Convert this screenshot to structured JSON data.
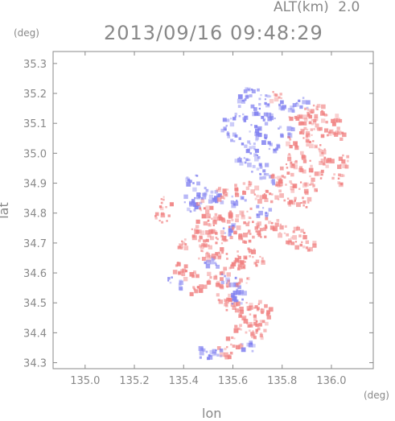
{
  "header": {
    "altitude_label": "ALT(km)",
    "altitude_value": "2.0",
    "timestamp": "2013/09/16 09:48:29"
  },
  "chart_data": {
    "type": "heatmap",
    "title": "2013/09/16 09:48:29",
    "subtitle": "ALT(km) 2.0",
    "xlabel": "lon",
    "ylabel": "lat",
    "xunit": "(deg)",
    "yunit": "(deg)",
    "xlim": [
      134.87,
      136.17
    ],
    "ylim": [
      34.28,
      35.34
    ],
    "xticks": [
      135.0,
      135.2,
      135.4,
      135.6,
      135.8,
      136.0
    ],
    "yticks": [
      34.3,
      34.4,
      34.5,
      34.6,
      34.7,
      34.8,
      34.9,
      35.0,
      35.1,
      35.2,
      35.3
    ],
    "xtick_labels": [
      "135.0",
      "135.2",
      "135.4",
      "135.6",
      "135.8",
      "136.0"
    ],
    "ytick_labels": [
      "34.3",
      "34.4",
      "34.5",
      "34.6",
      "34.7",
      "34.8",
      "34.9",
      "35.0",
      "35.1",
      "35.2",
      "35.3"
    ],
    "grid": false,
    "colors": {
      "positive": "#f08080",
      "negative": "#8080f0",
      "frame": "#888888"
    },
    "cells": [
      [
        135.64,
        35.18,
        -1
      ],
      [
        135.67,
        35.21,
        -1
      ],
      [
        135.7,
        35.15,
        -1
      ],
      [
        135.73,
        35.18,
        -1
      ],
      [
        135.69,
        35.09,
        -1
      ],
      [
        135.74,
        35.12,
        -1
      ],
      [
        135.77,
        35.19,
        1
      ],
      [
        135.62,
        35.13,
        -1
      ],
      [
        135.66,
        35.03,
        -1
      ],
      [
        135.72,
        35.05,
        -1
      ],
      [
        135.6,
        35.06,
        -1
      ],
      [
        135.63,
        34.98,
        -1
      ],
      [
        135.58,
        35.1,
        -1
      ],
      [
        135.87,
        35.17,
        -1
      ],
      [
        135.91,
        35.14,
        1
      ],
      [
        135.95,
        35.15,
        1
      ],
      [
        135.89,
        35.12,
        1
      ],
      [
        135.93,
        35.1,
        1
      ],
      [
        135.97,
        35.08,
        1
      ],
      [
        135.87,
        35.07,
        1
      ],
      [
        135.91,
        35.05,
        1
      ],
      [
        135.95,
        35.02,
        1
      ],
      [
        135.83,
        35.04,
        1
      ],
      [
        135.85,
        34.99,
        1
      ],
      [
        135.89,
        34.96,
        1
      ],
      [
        135.93,
        34.93,
        1
      ],
      [
        135.97,
        34.97,
        1
      ],
      [
        135.81,
        35.08,
        -1
      ],
      [
        135.85,
        35.11,
        1
      ],
      [
        136.0,
        35.12,
        1
      ],
      [
        135.8,
        34.91,
        1
      ],
      [
        135.86,
        34.89,
        1
      ],
      [
        135.91,
        34.89,
        1
      ],
      [
        135.76,
        34.86,
        1
      ],
      [
        135.83,
        34.84,
        1
      ],
      [
        135.73,
        34.92,
        -1
      ],
      [
        135.66,
        34.89,
        1
      ],
      [
        135.7,
        34.95,
        -1
      ],
      [
        135.7,
        34.85,
        1
      ],
      [
        135.42,
        34.85,
        -1
      ],
      [
        135.44,
        34.82,
        -1
      ],
      [
        135.46,
        34.87,
        -1
      ],
      [
        135.43,
        34.92,
        -1
      ],
      [
        135.48,
        34.83,
        1
      ],
      [
        135.5,
        34.86,
        -1
      ],
      [
        135.53,
        34.85,
        -1
      ],
      [
        135.56,
        34.87,
        1
      ],
      [
        135.59,
        34.88,
        1
      ],
      [
        135.62,
        34.84,
        -1
      ],
      [
        135.64,
        34.8,
        1
      ],
      [
        135.58,
        34.79,
        1
      ],
      [
        135.53,
        34.79,
        1
      ],
      [
        135.5,
        34.78,
        1
      ],
      [
        135.47,
        34.76,
        1
      ],
      [
        135.45,
        34.73,
        1
      ],
      [
        135.49,
        34.71,
        1
      ],
      [
        135.52,
        34.74,
        1
      ],
      [
        135.55,
        34.72,
        1
      ],
      [
        135.58,
        34.75,
        -1
      ],
      [
        135.61,
        34.74,
        1
      ],
      [
        135.64,
        34.72,
        1
      ],
      [
        135.67,
        34.76,
        1
      ],
      [
        135.7,
        34.74,
        1
      ],
      [
        135.72,
        34.81,
        -1
      ],
      [
        135.75,
        34.77,
        1
      ],
      [
        135.79,
        34.75,
        1
      ],
      [
        135.84,
        34.71,
        1
      ],
      [
        135.87,
        34.74,
        1
      ],
      [
        135.9,
        34.7,
        1
      ],
      [
        135.48,
        34.66,
        1
      ],
      [
        135.51,
        34.64,
        -1
      ],
      [
        135.54,
        34.67,
        1
      ],
      [
        135.57,
        34.62,
        1
      ],
      [
        135.6,
        34.66,
        1
      ],
      [
        135.63,
        34.63,
        1
      ],
      [
        135.66,
        34.67,
        1
      ],
      [
        135.69,
        34.64,
        1
      ],
      [
        135.52,
        34.59,
        1
      ],
      [
        135.55,
        34.56,
        1
      ],
      [
        135.58,
        34.58,
        -1
      ],
      [
        135.61,
        34.55,
        -1
      ],
      [
        135.64,
        34.58,
        1
      ],
      [
        135.56,
        34.52,
        1
      ],
      [
        135.59,
        34.49,
        1
      ],
      [
        135.62,
        34.51,
        -1
      ],
      [
        135.65,
        34.47,
        1
      ],
      [
        135.68,
        34.5,
        1
      ],
      [
        135.63,
        34.43,
        1
      ],
      [
        135.67,
        34.42,
        1
      ],
      [
        135.71,
        34.45,
        1
      ],
      [
        135.73,
        34.48,
        1
      ],
      [
        135.7,
        34.4,
        1
      ],
      [
        135.6,
        34.37,
        1
      ],
      [
        135.65,
        34.36,
        -1
      ],
      [
        135.56,
        34.34,
        1
      ],
      [
        135.52,
        34.33,
        -1
      ],
      [
        135.48,
        34.34,
        -1
      ],
      [
        135.45,
        34.55,
        1
      ],
      [
        135.42,
        34.6,
        1
      ],
      [
        135.38,
        34.62,
        1
      ],
      [
        135.4,
        34.7,
        1
      ],
      [
        135.36,
        34.57,
        -1
      ],
      [
        135.33,
        34.84,
        1
      ],
      [
        135.31,
        34.79,
        1
      ],
      [
        135.78,
        34.92,
        1
      ],
      [
        135.82,
        34.95,
        1
      ],
      [
        135.88,
        34.84,
        1
      ],
      [
        135.81,
        35.16,
        -1
      ],
      [
        135.76,
        35.02,
        -1
      ],
      [
        136.03,
        35.07,
        1
      ],
      [
        136.05,
        34.98,
        1
      ],
      [
        136.02,
        34.92,
        1
      ],
      [
        135.68,
        35.0,
        -1
      ]
    ]
  }
}
